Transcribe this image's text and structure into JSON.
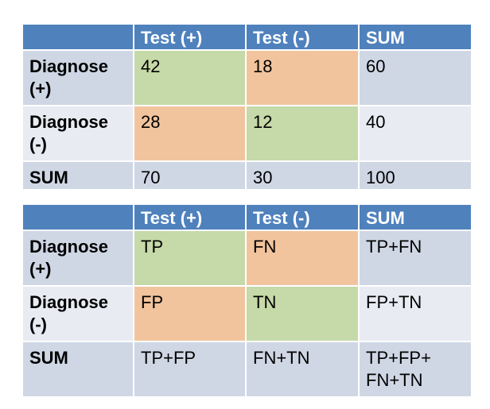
{
  "table1": {
    "headers": [
      "",
      "Test (+)",
      "Test (-)",
      "SUM"
    ],
    "rows": [
      [
        "Diagnose (+)",
        "42",
        "18",
        "60"
      ],
      [
        "Diagnose (-)",
        "28",
        "12",
        "40"
      ],
      [
        "SUM",
        "70",
        "30",
        "100"
      ]
    ]
  },
  "table2": {
    "headers": [
      "",
      "Test (+)",
      "Test (-)",
      "SUM"
    ],
    "rows": [
      [
        "Diagnose (+)",
        "TP",
        "FN",
        "TP+FN"
      ],
      [
        "Diagnose (-)",
        "FP",
        "TN",
        "FP+TN"
      ],
      [
        "SUM",
        "TP+FP",
        "FN+TN",
        "TP+FP+ FN+TN"
      ]
    ]
  },
  "colors": {
    "header": "#4f81bd",
    "row_dark": "#cfd7e5",
    "row_light": "#e8ebf2",
    "true_cell": "#c6d9a8",
    "false_cell": "#f2c49d"
  }
}
